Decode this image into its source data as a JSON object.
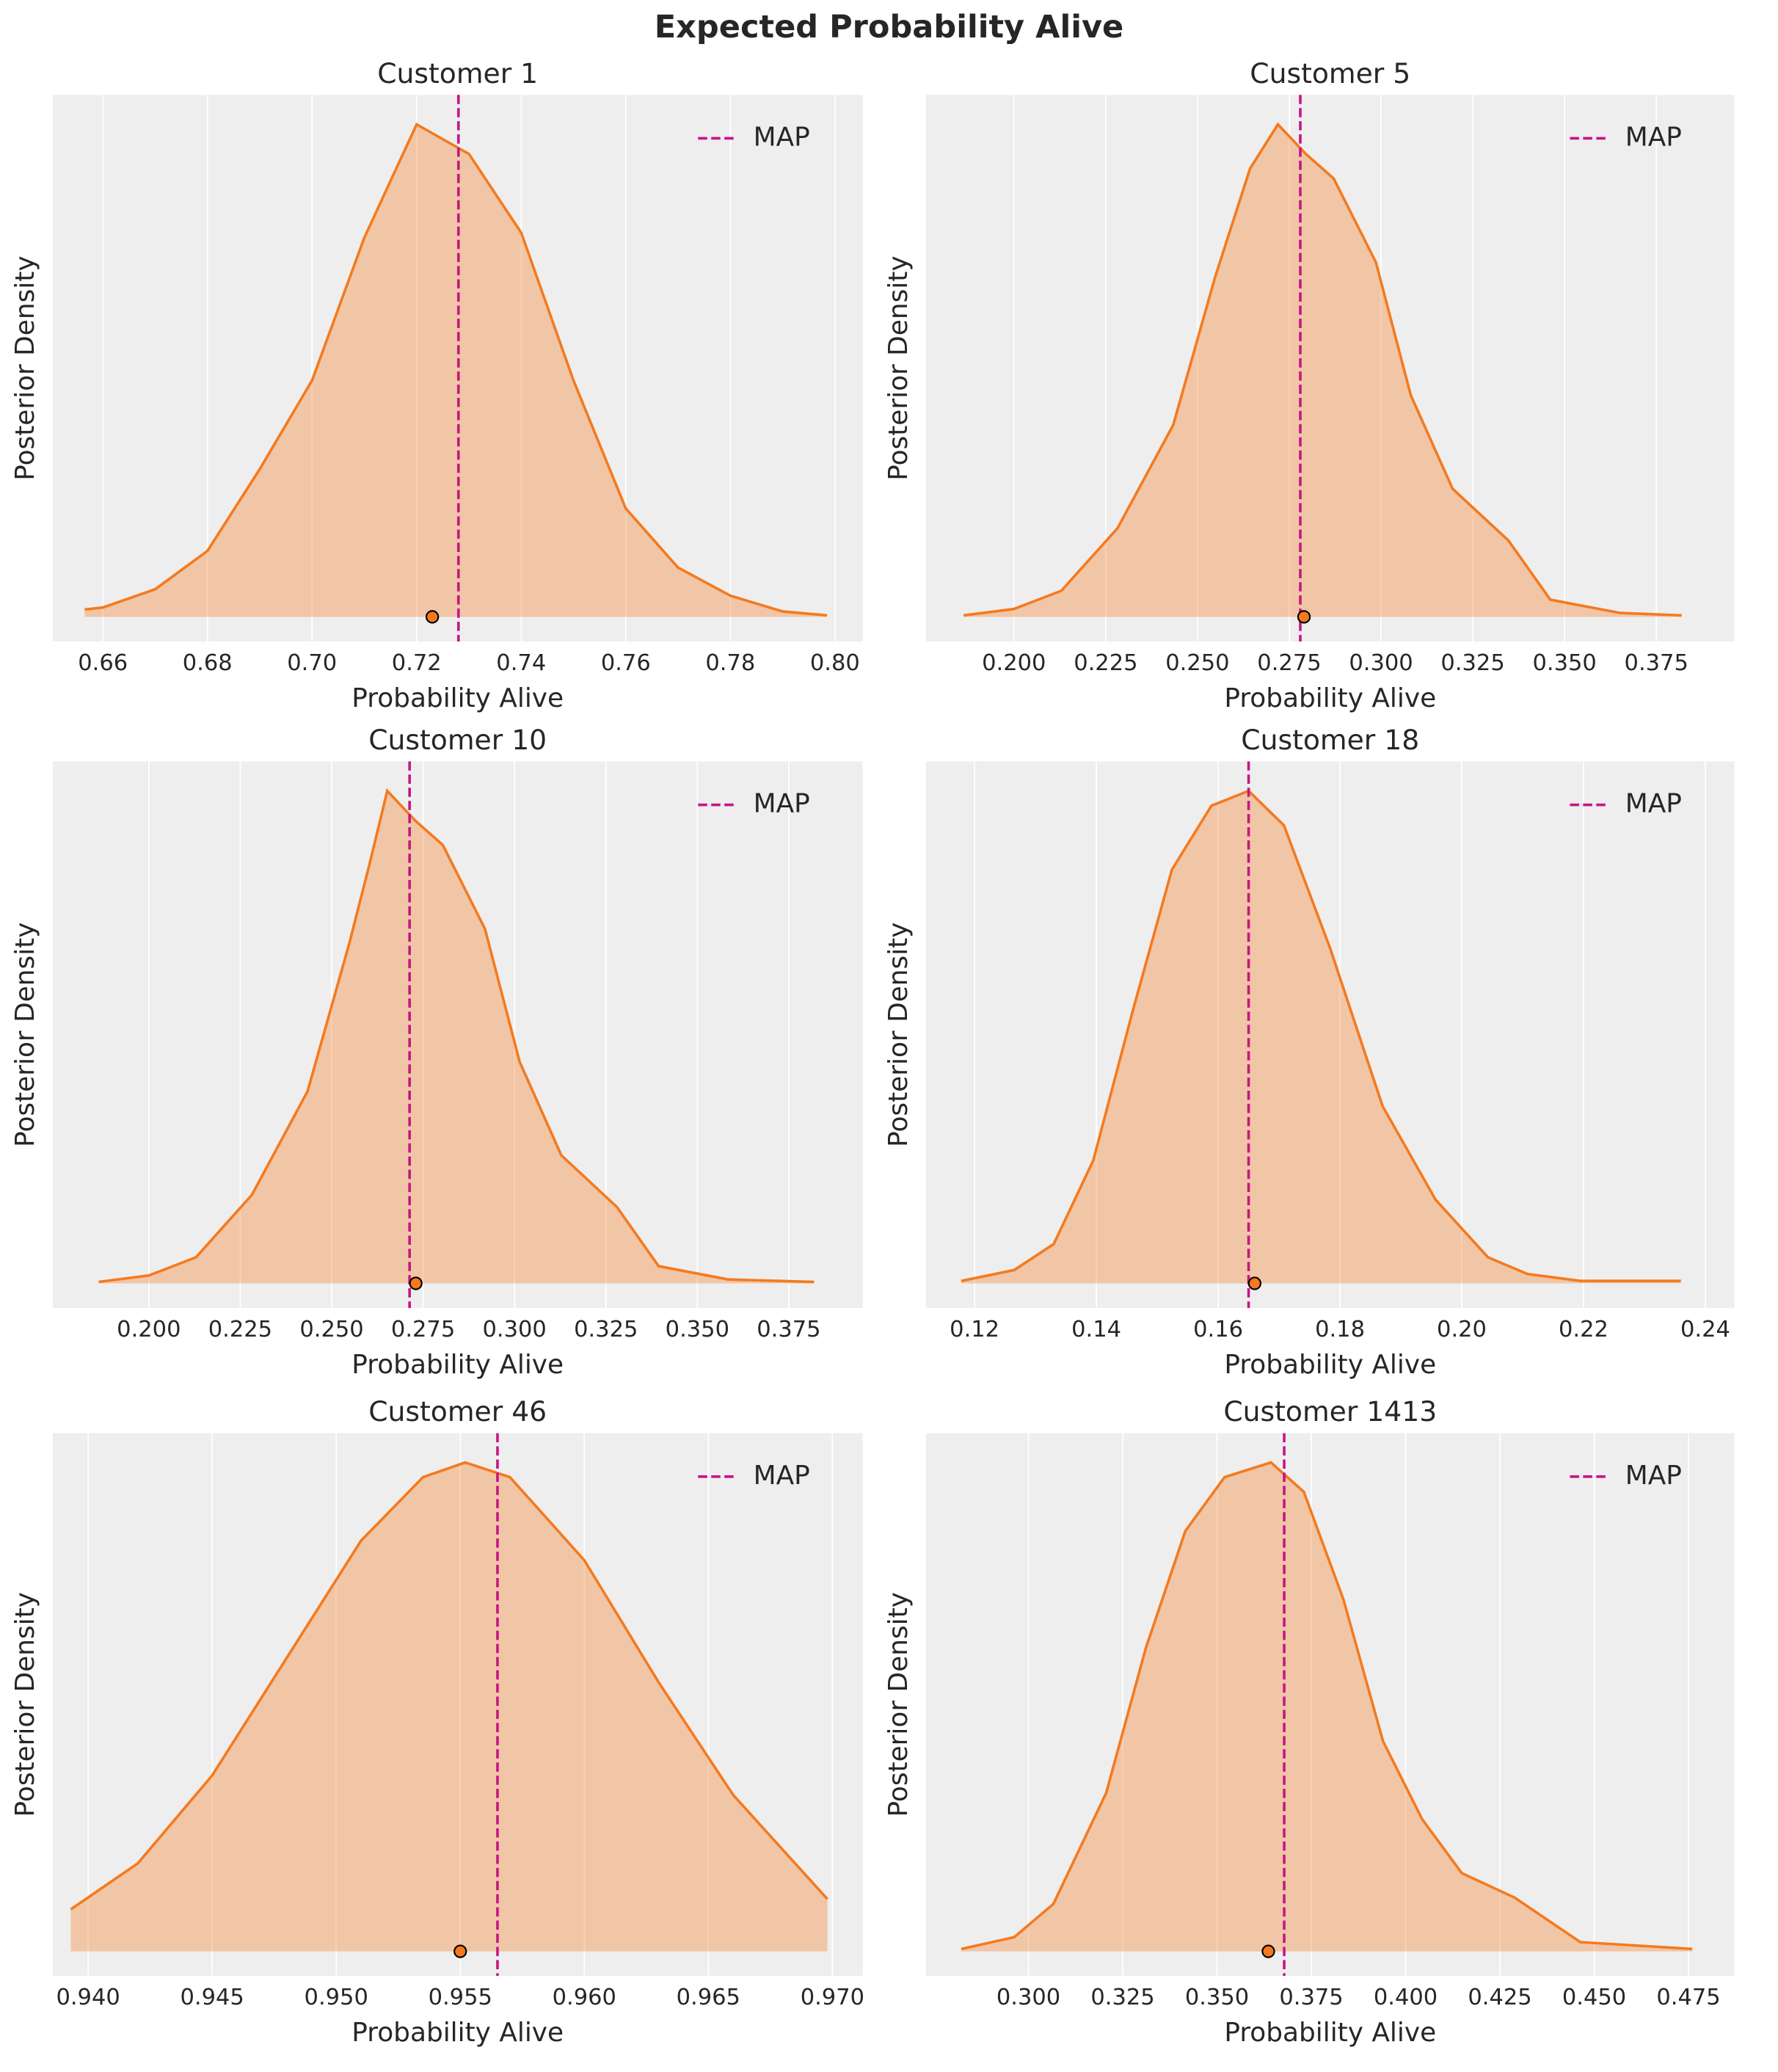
{
  "title": "Expected Probability Alive",
  "chart_data": [
    {
      "type": "kde",
      "title": "Customer 1",
      "xlabel": "Probability Alive",
      "ylabel": "Posterior Density",
      "xlim": [
        0.6504,
        0.8053
      ],
      "ylim": [
        -0.05,
        1.06
      ],
      "grid": true,
      "legend": "upper right",
      "xticks": [
        0.66,
        0.68,
        {
          "value": 0.7,
          "label": "0.70"
        },
        0.72,
        0.74,
        0.76,
        0.78,
        {
          "value": 0.8,
          "label": "0.80"
        }
      ],
      "x": [
        0.6565,
        0.66,
        0.67,
        0.68,
        0.69,
        0.7,
        0.71,
        0.72,
        0.73,
        0.74,
        0.75,
        0.76,
        0.77,
        0.78,
        0.79,
        0.7985
      ],
      "values": [
        0.015,
        0.019,
        0.056,
        0.134,
        0.3,
        0.48,
        0.77,
        1.0,
        0.94,
        0.78,
        0.48,
        0.22,
        0.1,
        0.043,
        0.011,
        0.003
      ],
      "color": "#f47a1f",
      "map_label": "MAP",
      "map_value": 0.728,
      "map_color": "#c71585",
      "mean": 0.723
    },
    {
      "type": "kde",
      "title": "Customer 5",
      "xlabel": "Probability Alive",
      "ylabel": "Posterior Density",
      "xlim": [
        0.176,
        0.3963
      ],
      "ylim": [
        -0.05,
        1.06
      ],
      "grid": true,
      "legend": "upper right",
      "xticks": [
        {
          "value": 0.2,
          "label": "0.200"
        },
        0.225,
        {
          "value": 0.25,
          "label": "0.250"
        },
        0.275,
        {
          "value": 0.3,
          "label": "0.300"
        },
        0.325,
        {
          "value": 0.35,
          "label": "0.350"
        },
        0.375
      ],
      "x": [
        0.1863,
        0.2,
        0.2129,
        0.2282,
        0.2434,
        0.2548,
        0.2643,
        0.2719,
        0.2795,
        0.2871,
        0.2986,
        0.3081,
        0.3195,
        0.3347,
        0.3461,
        0.3651,
        0.3819
      ],
      "values": [
        0.003,
        0.016,
        0.053,
        0.18,
        0.39,
        0.69,
        0.91,
        1.0,
        0.94,
        0.89,
        0.72,
        0.45,
        0.26,
        0.155,
        0.035,
        0.008,
        0.003
      ],
      "color": "#f47a1f",
      "map_label": "MAP",
      "map_value": 0.278,
      "map_color": "#c71585",
      "mean": 0.279
    },
    {
      "type": "kde",
      "title": "Customer 10",
      "xlabel": "Probability Alive",
      "ylabel": "Posterior Density",
      "xlim": [
        0.1737,
        0.3952
      ],
      "ylim": [
        -0.05,
        1.06
      ],
      "grid": true,
      "legend": "upper right",
      "xticks": [
        {
          "value": 0.2,
          "label": "0.200"
        },
        0.225,
        {
          "value": 0.25,
          "label": "0.250"
        },
        0.275,
        {
          "value": 0.3,
          "label": "0.300"
        },
        0.325,
        {
          "value": 0.35,
          "label": "0.350"
        },
        0.375
      ],
      "x": [
        0.1863,
        0.2,
        0.2129,
        0.2282,
        0.2434,
        0.2548,
        0.2603,
        0.2652,
        0.2728,
        0.2804,
        0.2919,
        0.3014,
        0.3128,
        0.328,
        0.3394,
        0.3584,
        0.3819
      ],
      "values": [
        0.003,
        0.016,
        0.053,
        0.18,
        0.39,
        0.69,
        0.85,
        1.0,
        0.94,
        0.89,
        0.72,
        0.45,
        0.26,
        0.155,
        0.035,
        0.008,
        0.003
      ],
      "color": "#f47a1f",
      "map_label": "MAP",
      "map_value": 0.2713,
      "map_color": "#c71585",
      "mean": 0.273
    },
    {
      "type": "kde",
      "title": "Customer 18",
      "xlabel": "Probability Alive",
      "ylabel": "Posterior Density",
      "xlim": [
        0.112,
        0.2448
      ],
      "ylim": [
        -0.05,
        1.06
      ],
      "grid": true,
      "legend": "upper right",
      "xticks": [
        0.12,
        0.14,
        0.16,
        0.18,
        {
          "value": 0.2,
          "label": "0.20"
        },
        0.22,
        0.24
      ],
      "x": [
        0.1178,
        0.1265,
        0.133,
        0.1395,
        0.1459,
        0.1524,
        0.1589,
        0.165,
        0.1708,
        0.1784,
        0.187,
        0.1957,
        0.2043,
        0.2108,
        0.2195,
        0.236
      ],
      "values": [
        0.005,
        0.027,
        0.08,
        0.25,
        0.55,
        0.84,
        0.97,
        1.0,
        0.93,
        0.68,
        0.36,
        0.17,
        0.053,
        0.019,
        0.005,
        0.005
      ],
      "color": "#f47a1f",
      "map_label": "MAP",
      "map_value": 0.165,
      "map_color": "#c71585",
      "mean": 0.166
    },
    {
      "type": "kde",
      "title": "Customer 46",
      "xlabel": "Probability Alive",
      "ylabel": "Posterior Density",
      "xlim": [
        0.93857,
        0.97122
      ],
      "ylim": [
        -0.05,
        1.06
      ],
      "grid": true,
      "legend": "upper right",
      "xticks": [
        {
          "value": 0.94,
          "label": "0.940"
        },
        0.945,
        {
          "value": 0.95,
          "label": "0.950"
        },
        0.955,
        {
          "value": 0.96,
          "label": "0.960"
        },
        0.965,
        {
          "value": 0.97,
          "label": "0.970"
        }
      ],
      "x": [
        0.9393,
        0.942,
        0.945,
        0.948,
        0.951,
        0.9535,
        0.9552,
        0.957,
        0.96,
        0.963,
        0.966,
        0.9698
      ],
      "values": [
        0.086,
        0.18,
        0.36,
        0.6,
        0.84,
        0.97,
        1.0,
        0.97,
        0.8,
        0.55,
        0.32,
        0.107
      ],
      "color": "#f47a1f",
      "map_label": "MAP",
      "map_value": 0.9565,
      "map_color": "#c71585",
      "mean": 0.955
    },
    {
      "type": "kde",
      "title": "Customer 1413",
      "xlabel": "Probability Alive",
      "ylabel": "Posterior Density",
      "xlim": [
        0.2728,
        0.4872
      ],
      "ylim": [
        -0.05,
        1.06
      ],
      "grid": true,
      "legend": "upper right",
      "xticks": [
        {
          "value": 0.3,
          "label": "0.300"
        },
        0.325,
        {
          "value": 0.35,
          "label": "0.350"
        },
        0.375,
        {
          "value": 0.4,
          "label": "0.400"
        },
        0.425,
        {
          "value": 0.45,
          "label": "0.450"
        },
        0.475
      ],
      "x": [
        0.2822,
        0.2962,
        0.3066,
        0.3206,
        0.3311,
        0.3416,
        0.352,
        0.3643,
        0.373,
        0.3835,
        0.394,
        0.4044,
        0.4149,
        0.4289,
        0.4463,
        0.476
      ],
      "values": [
        0.005,
        0.029,
        0.097,
        0.324,
        0.62,
        0.86,
        0.97,
        1.0,
        0.94,
        0.72,
        0.43,
        0.27,
        0.16,
        0.11,
        0.019,
        0.005
      ],
      "color": "#f47a1f",
      "map_label": "MAP",
      "map_value": 0.3678,
      "map_color": "#c71585",
      "mean": 0.3636
    }
  ]
}
